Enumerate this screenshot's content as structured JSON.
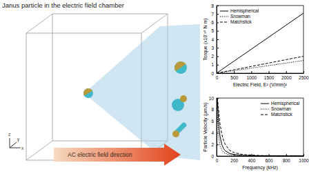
{
  "diagram": {
    "title": "Janus particle in the electric field chamber",
    "field_label": "AC electric field direction",
    "axis_labels": [
      "z",
      "y",
      "x"
    ]
  },
  "chart_data": [
    {
      "type": "line",
      "y_label": "Torque (x10⁻¹⁸ N m)",
      "x_label": "Electric Field, E² (V/mm)²",
      "x": [
        0,
        500,
        1000,
        1500,
        2000,
        2500
      ],
      "series": [
        {
          "name": "Hemispherical",
          "color": "#000000",
          "line_style": "solid",
          "values": [
            0,
            1.42,
            2.84,
            4.26,
            5.68,
            7.1
          ]
        },
        {
          "name": "Snowman",
          "color": "#000000",
          "line_style": "dotted",
          "values": [
            0,
            0.3,
            0.6,
            0.9,
            1.2,
            1.5
          ]
        },
        {
          "name": "Matchstick",
          "color": "#000000",
          "line_style": "dashed",
          "values": [
            0,
            0.4,
            0.8,
            1.2,
            1.6,
            2.0
          ]
        }
      ],
      "xlim": [
        0,
        2500
      ],
      "xticks": [
        0,
        500,
        1000,
        1500,
        2000,
        2500
      ],
      "ylim": [
        0,
        8
      ],
      "yticks": [
        0,
        1,
        2,
        3,
        4,
        5,
        6,
        7,
        8
      ],
      "legend": "top-left",
      "grid": false
    },
    {
      "type": "line",
      "y_label": "Particle Velocity (μm/s)",
      "x_label": "Frequency (kHz)",
      "x": [
        5,
        10,
        20,
        30,
        40,
        60,
        80,
        100,
        150,
        200,
        300,
        400,
        500,
        600,
        800,
        1000
      ],
      "series": [
        {
          "name": "Hemispherical",
          "color": "#000000",
          "line_style": "solid",
          "values": [
            10,
            9.5,
            6.5,
            4.6,
            3.4,
            2.0,
            1.3,
            0.9,
            0.45,
            0.27,
            0.13,
            0.08,
            0.05,
            0.04,
            0.02,
            0.015
          ]
        },
        {
          "name": "Snowman",
          "color": "#000000",
          "line_style": "dotted",
          "values": [
            9.0,
            7.0,
            4.0,
            2.6,
            1.8,
            1.0,
            0.65,
            0.45,
            0.22,
            0.13,
            0.06,
            0.04,
            0.03,
            0.02,
            0.01,
            0.01
          ]
        },
        {
          "name": "Matchstick",
          "color": "#000000",
          "line_style": "dashed",
          "values": [
            10,
            10,
            8.5,
            6.8,
            5.5,
            3.8,
            2.7,
            2.0,
            1.0,
            0.6,
            0.28,
            0.16,
            0.1,
            0.07,
            0.04,
            0.03
          ]
        }
      ],
      "xlim": [
        0,
        1000
      ],
      "xticks": [
        0,
        200,
        400,
        600,
        800,
        1000
      ],
      "ylim": [
        0,
        10
      ],
      "yticks": [
        0,
        2,
        4,
        6,
        8,
        10
      ],
      "legend": "top-right",
      "grid": false
    }
  ]
}
